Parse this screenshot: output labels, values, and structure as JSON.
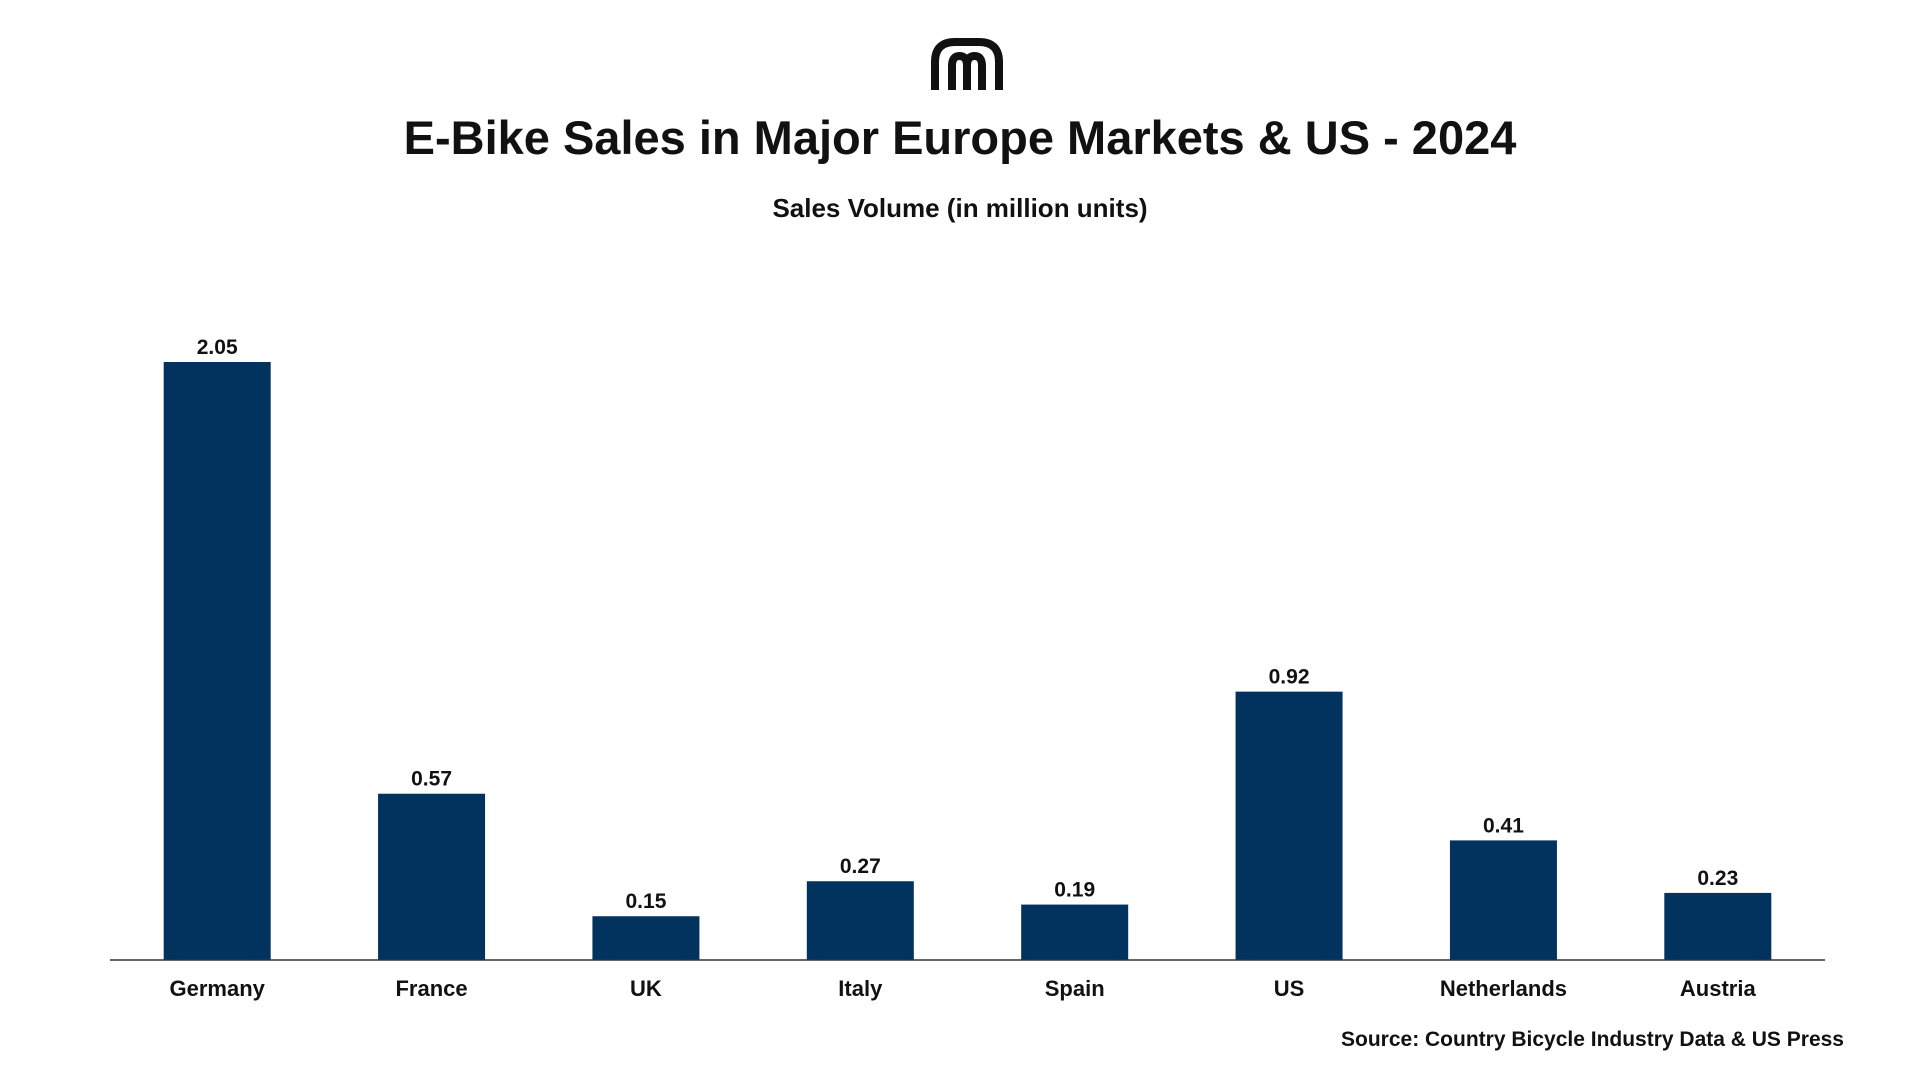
{
  "header": {
    "title": "E-Bike Sales in Major Europe Markets & US - 2024",
    "subtitle": "Sales Volume (in million units)"
  },
  "logo": {
    "icon": "arches-logo-icon",
    "color": "#111111"
  },
  "chart_data": {
    "type": "bar",
    "title": "E-Bike Sales in Major Europe Markets & US - 2024",
    "subtitle": "Sales Volume (in million units)",
    "categories": [
      "Germany",
      "France",
      "UK",
      "Italy",
      "Spain",
      "US",
      "Netherlands",
      "Austria"
    ],
    "values": [
      2.05,
      0.57,
      0.15,
      0.27,
      0.19,
      0.92,
      0.41,
      0.23
    ],
    "data_labels": [
      "2.05",
      "0.57",
      "0.15",
      "0.27",
      "0.19",
      "0.92",
      "0.41",
      "0.23"
    ],
    "xlabel": "",
    "ylabel": "",
    "ylim": [
      0,
      2.05
    ],
    "grid": false,
    "legend": "none",
    "bar_color": "#02335F"
  },
  "footer": {
    "source": "Source: Country Bicycle Industry Data & US Press"
  }
}
